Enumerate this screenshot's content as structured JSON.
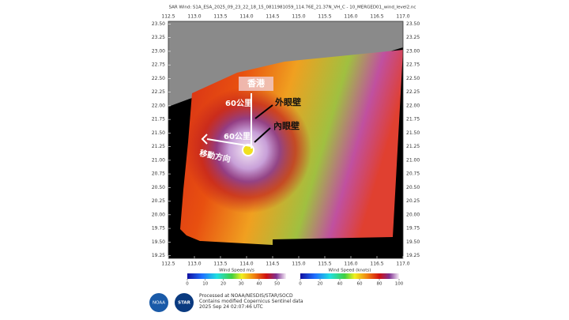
{
  "title": "SAR Wind: S1A_ESA_2025_09_23_22_18_15_0811981059_114.76E_21.37N_VH_C - 10_MERGED01_wind_level2.nc",
  "map": {
    "xlim": [
      112.5,
      117.0
    ],
    "ylim": [
      19.2,
      23.55
    ],
    "xticks": [
      112.5,
      {
        "value": 113.0,
        "label": "113.0"
      },
      113.5,
      {
        "value": 114.0,
        "label": "114.0"
      },
      114.5,
      {
        "value": 115.0,
        "label": "115.0"
      },
      115.5,
      {
        "value": 116.0,
        "label": "116.0"
      },
      116.5,
      {
        "value": 117.0,
        "label": "117.0"
      }
    ],
    "yticks": [
      19.25,
      {
        "value": 19.5,
        "label": "19.50"
      },
      19.75,
      {
        "value": 20.0,
        "label": "20.00"
      },
      20.25,
      {
        "value": 20.5,
        "label": "20.50"
      },
      20.75,
      {
        "value": 21.0,
        "label": "21.00"
      },
      21.25,
      {
        "value": 21.5,
        "label": "21.50"
      },
      21.75,
      {
        "value": 22.0,
        "label": "22.00"
      },
      22.25,
      {
        "value": 22.5,
        "label": "22.50"
      },
      22.75,
      {
        "value": 23.0,
        "label": "23.00"
      },
      23.25,
      {
        "value": 23.5,
        "label": "23.50"
      }
    ],
    "annotations": {
      "hong_kong": "香港",
      "distance_north": "60公里",
      "outer_eyewall": "外眼壁",
      "inner_eyewall": "內眼壁",
      "distance_west": "60公里",
      "direction": "移動方向"
    }
  },
  "colorbars": [
    {
      "label": "Wind Speed m/s",
      "lim": [
        0,
        55
      ],
      "ticks": [
        0,
        10,
        20,
        30,
        40,
        50
      ]
    },
    {
      "label": "Wind Speed (knots)",
      "lim": [
        0,
        100
      ],
      "ticks": [
        0,
        20,
        40,
        60,
        80,
        100
      ]
    }
  ],
  "logos": [
    "NOAA",
    "STAR"
  ],
  "footer": [
    "Processed at NOAA/NESDIS/STAR/SOCD",
    "Contains modified Copernicus Sentinel data",
    "2025 Sep 24 02:07:46 UTC"
  ]
}
